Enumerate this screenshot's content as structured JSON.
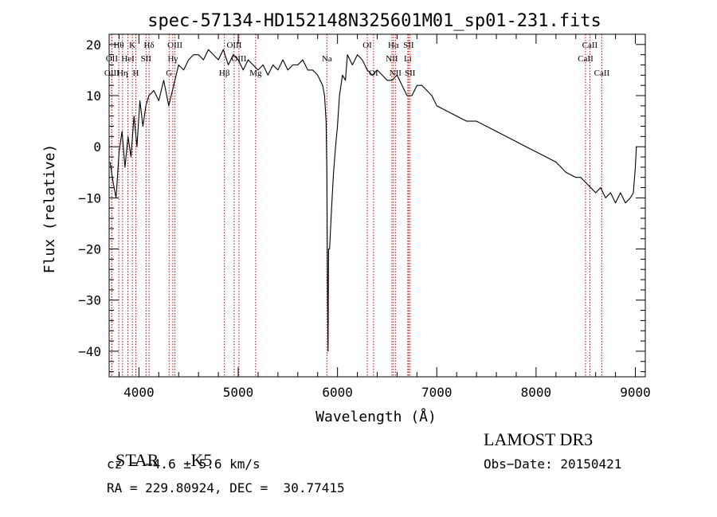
{
  "chart_data": {
    "type": "line",
    "title": "spec-57134-HD152148N325601M01_sp01-231.fits",
    "xlabel": "Wavelength (Å)",
    "ylabel": "Flux (relative)",
    "xlim": [
      3700,
      9100
    ],
    "ylim": [
      -45,
      22
    ],
    "xticks": [
      4000,
      5000,
      6000,
      7000,
      8000,
      9000
    ],
    "yticks": [
      -40,
      -30,
      -20,
      -10,
      0,
      10,
      20
    ],
    "series": [
      {
        "name": "flux",
        "x": [
          3710,
          3740,
          3770,
          3800,
          3830,
          3860,
          3890,
          3920,
          3950,
          3980,
          4010,
          4040,
          4070,
          4100,
          4150,
          4200,
          4250,
          4300,
          4350,
          4400,
          4450,
          4500,
          4550,
          4600,
          4650,
          4700,
          4750,
          4800,
          4850,
          4900,
          4950,
          5000,
          5050,
          5100,
          5150,
          5200,
          5250,
          5300,
          5350,
          5400,
          5450,
          5500,
          5550,
          5600,
          5650,
          5700,
          5750,
          5800,
          5850,
          5870,
          5885,
          5893,
          5900,
          5905,
          5910,
          5920,
          5940,
          5960,
          5980,
          6000,
          6020,
          6050,
          6080,
          6100,
          6150,
          6200,
          6250,
          6300,
          6350,
          6400,
          6450,
          6500,
          6550,
          6600,
          6650,
          6700,
          6750,
          6800,
          6850,
          6900,
          6950,
          7000,
          7100,
          7200,
          7300,
          7400,
          7500,
          7600,
          7700,
          7800,
          7900,
          8000,
          8100,
          8200,
          8300,
          8400,
          8450,
          8500,
          8550,
          8600,
          8650,
          8700,
          8750,
          8800,
          8850,
          8900,
          8950,
          8980,
          9000,
          9010
        ],
        "y": [
          -3,
          -7,
          -10,
          -1,
          3,
          -4,
          2,
          -2,
          6,
          0,
          9,
          4,
          8,
          10,
          11,
          9,
          13,
          8,
          12,
          16,
          15,
          17,
          18,
          18,
          17,
          19,
          18,
          17,
          19,
          16,
          18,
          17,
          15,
          17,
          16,
          15,
          16,
          14,
          16,
          15,
          17,
          15,
          16,
          16,
          17,
          15,
          15,
          14,
          12,
          10,
          5,
          -5,
          -30,
          -40,
          -20,
          -20,
          -12,
          -5,
          0,
          4,
          10,
          14,
          13,
          18,
          16,
          18,
          17,
          15,
          14,
          15,
          14,
          13,
          13,
          14,
          12,
          10,
          10,
          12,
          12,
          11,
          10,
          8,
          7,
          6,
          5,
          5,
          4,
          3,
          2,
          1,
          0,
          -1,
          -2,
          -3,
          -5,
          -6,
          -6,
          -7,
          -8,
          -9,
          -8,
          -10,
          -9,
          -11,
          -9,
          -11,
          -10,
          -9,
          -4,
          0
        ],
        "color": "#000000"
      }
    ],
    "line_annotations": [
      {
        "label": "Hθ",
        "wavelength": 3797,
        "color": "#cc0000",
        "label_row": 1
      },
      {
        "label": "OII",
        "wavelength": 3727,
        "color": "#cc0000",
        "label_row": 2
      },
      {
        "label": "OIII",
        "wavelength": 3727,
        "color": "#cc0000",
        "label_row": 3
      },
      {
        "label": "Hη",
        "wavelength": 3835,
        "color": "#cc0000",
        "label_row": 3
      },
      {
        "label": "HeI",
        "wavelength": 3889,
        "color": "#cc0000",
        "label_row": 2
      },
      {
        "label": "K",
        "wavelength": 3934,
        "color": "#cc0000",
        "label_row": 1
      },
      {
        "label": "H",
        "wavelength": 3969,
        "color": "#cc0000",
        "label_row": 3
      },
      {
        "label": "SII",
        "wavelength": 4072,
        "color": "#cc0000",
        "label_row": 2
      },
      {
        "label": "Hδ",
        "wavelength": 4102,
        "color": "#cc0000",
        "label_row": 1
      },
      {
        "label": "OIII",
        "wavelength": 4363,
        "color": "#cc0000",
        "label_row": 1
      },
      {
        "label": "Hγ",
        "wavelength": 4341,
        "color": "#cc0000",
        "label_row": 2
      },
      {
        "label": "G",
        "wavelength": 4304,
        "color": "#cc0000",
        "label_row": 3
      },
      {
        "label": "Hβ",
        "wavelength": 4861,
        "color": "#cc0000",
        "label_row": 3
      },
      {
        "label": "OIII",
        "wavelength": 4959,
        "color": "#cc0000",
        "label_row": 1
      },
      {
        "label": "OIII",
        "wavelength": 5007,
        "color": "#cc0000",
        "label_row": 2
      },
      {
        "label": "Mg",
        "wavelength": 5175,
        "color": "#cc0000",
        "label_row": 3
      },
      {
        "label": "Na",
        "wavelength": 5893,
        "color": "#cc0000",
        "label_row": 2
      },
      {
        "label": "OI",
        "wavelength": 6300,
        "color": "#cc0000",
        "label_row": 1
      },
      {
        "label": "OI",
        "wavelength": 6363,
        "color": "#cc0000",
        "label_row": 3
      },
      {
        "label": "Hα",
        "wavelength": 6563,
        "color": "#cc0000",
        "label_row": 1
      },
      {
        "label": "NII",
        "wavelength": 6548,
        "color": "#cc0000",
        "label_row": 2
      },
      {
        "label": "NII",
        "wavelength": 6583,
        "color": "#cc0000",
        "label_row": 3
      },
      {
        "label": "SII",
        "wavelength": 6716,
        "color": "#cc0000",
        "label_row": 1
      },
      {
        "label": "Li",
        "wavelength": 6708,
        "color": "#cc0000",
        "label_row": 2
      },
      {
        "label": "SII",
        "wavelength": 6731,
        "color": "#cc0000",
        "label_row": 3
      },
      {
        "label": "CaII",
        "wavelength": 8542,
        "color": "#cc0000",
        "label_row": 1
      },
      {
        "label": "CaII",
        "wavelength": 8498,
        "color": "#cc0000",
        "label_row": 2
      },
      {
        "label": "CaII",
        "wavelength": 8662,
        "color": "#cc0000",
        "label_row": 3
      }
    ]
  },
  "info": {
    "class_label": "STAR",
    "subclass": "K5",
    "survey": "LAMOST DR3",
    "redshift_text": "cz = −4.6 ± 5.6 km/s",
    "obs_date_text": "Obs−Date: 20150421",
    "coords_text": "RA = 229.80924, DEC =  30.77415"
  }
}
